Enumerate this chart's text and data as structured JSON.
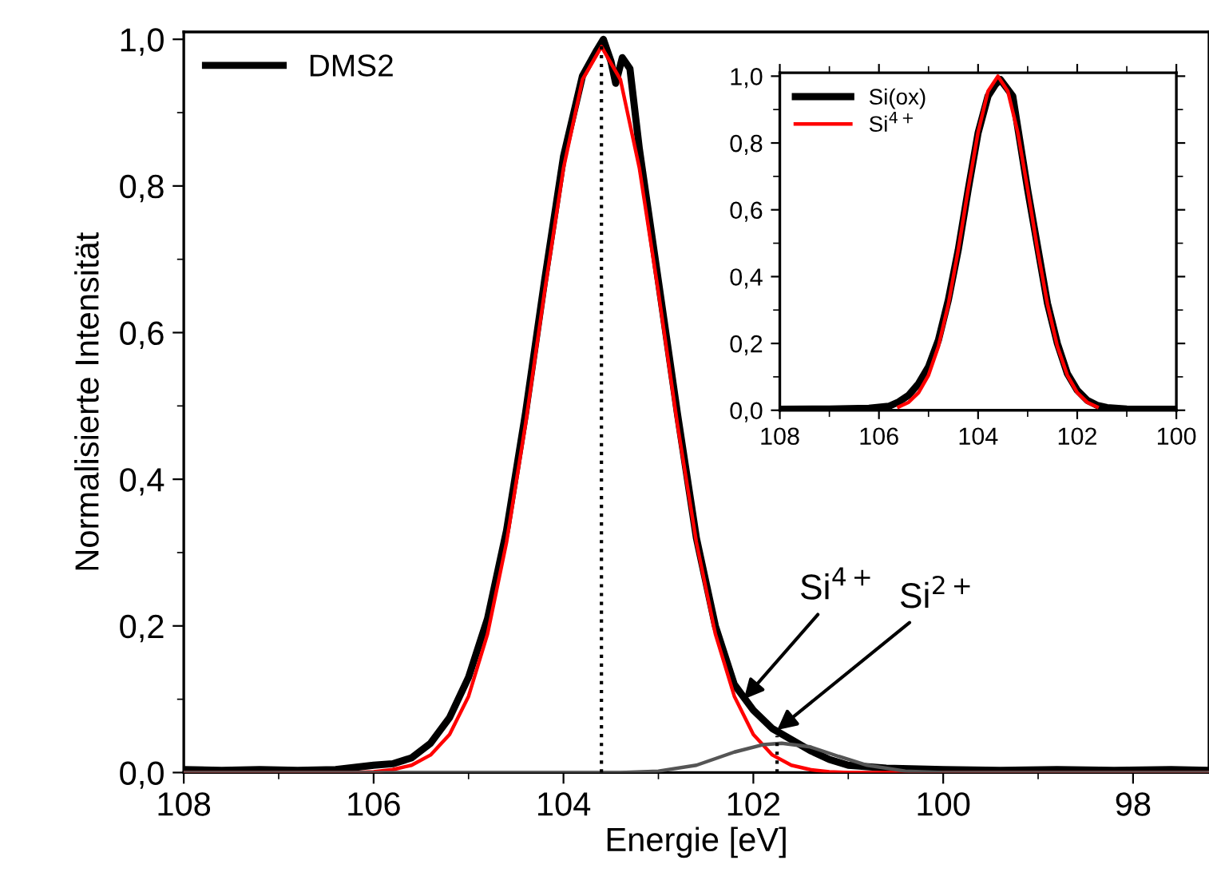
{
  "chart_data": [
    {
      "type": "line",
      "xlabel": "Energie [eV]",
      "ylabel": "Normalisierte Intensität",
      "xlim": [
        108,
        97.2
      ],
      "ylim": [
        0,
        1.01
      ],
      "xticks": [
        108,
        106,
        104,
        102,
        100,
        98
      ],
      "yticks": [
        {
          "value": 0,
          "label": "0,0"
        },
        {
          "value": 0.2,
          "label": "0,2"
        },
        {
          "value": 0.4,
          "label": "0,4"
        },
        {
          "value": 0.6,
          "label": "0,6"
        },
        {
          "value": 0.8,
          "label": "0,8"
        },
        {
          "value": 1.0,
          "label": "1,0"
        }
      ],
      "legend": "top left",
      "grid": false,
      "series": [
        {
          "name": "DMS2",
          "color": "#000000",
          "x": [
            108,
            107.6,
            107.2,
            106.8,
            106.4,
            106.2,
            106.0,
            105.8,
            105.6,
            105.4,
            105.2,
            105.0,
            104.8,
            104.6,
            104.4,
            104.2,
            104.0,
            103.8,
            103.65,
            103.58,
            103.5,
            103.45,
            103.38,
            103.3,
            103.2,
            103.0,
            102.8,
            102.6,
            102.4,
            102.2,
            102.0,
            101.8,
            101.6,
            101.4,
            101.2,
            101.0,
            100.6,
            100.0,
            99.4,
            98.8,
            98.2,
            97.6,
            97.2
          ],
          "values": [
            0.004,
            0.003,
            0.004,
            0.003,
            0.004,
            0.007,
            0.01,
            0.012,
            0.02,
            0.04,
            0.075,
            0.13,
            0.21,
            0.33,
            0.49,
            0.67,
            0.84,
            0.95,
            0.985,
            1.0,
            0.97,
            0.94,
            0.975,
            0.96,
            0.85,
            0.67,
            0.49,
            0.32,
            0.2,
            0.12,
            0.085,
            0.06,
            0.045,
            0.03,
            0.018,
            0.01,
            0.006,
            0.004,
            0.003,
            0.004,
            0.003,
            0.004,
            0.003
          ]
        },
        {
          "color": "#ff0000",
          "x": [
            108,
            106.2,
            106.0,
            105.8,
            105.6,
            105.4,
            105.2,
            105.0,
            104.8,
            104.6,
            104.4,
            104.2,
            104.0,
            103.8,
            103.6,
            103.4,
            103.2,
            103.0,
            102.8,
            102.6,
            102.4,
            102.2,
            102.0,
            101.8,
            101.6,
            101.4,
            101.2,
            101.0,
            97.2
          ],
          "values": [
            0,
            0,
            0.001,
            0.004,
            0.01,
            0.024,
            0.052,
            0.104,
            0.189,
            0.314,
            0.475,
            0.655,
            0.824,
            0.945,
            0.99,
            0.945,
            0.824,
            0.655,
            0.475,
            0.314,
            0.189,
            0.104,
            0.052,
            0.024,
            0.01,
            0.004,
            0.001,
            0,
            0
          ]
        },
        {
          "color": "#555555",
          "x": [
            108,
            103.4,
            103.0,
            102.6,
            102.2,
            101.9,
            101.7,
            101.4,
            101.1,
            100.8,
            100.4,
            100.0,
            97.2
          ],
          "values": [
            0,
            0,
            0.002,
            0.01,
            0.028,
            0.038,
            0.04,
            0.035,
            0.022,
            0.01,
            0.002,
            0,
            0
          ]
        },
        {
          "color": "#000000",
          "line_style": "dotted",
          "x": [
            103.6,
            103.6
          ],
          "values": [
            0,
            0.995
          ]
        },
        {
          "color": "#000000",
          "line_style": "dotted",
          "x": [
            101.75,
            101.75
          ],
          "values": [
            0,
            0.05
          ]
        }
      ],
      "annotations": [
        {
          "text": "Si$^{4+}$",
          "x": 102.1,
          "y": 0.1
        },
        {
          "text": "Si$^{2+}$",
          "x": 101.75,
          "y": 0.058
        }
      ]
    },
    {
      "type": "line",
      "xlim": [
        108,
        100
      ],
      "ylim": [
        0,
        1.01
      ],
      "xticks": [
        108,
        106,
        104,
        102,
        100
      ],
      "yticks": [
        {
          "value": 0,
          "label": "0,0"
        },
        {
          "value": 0.2,
          "label": "0,2"
        },
        {
          "value": 0.4,
          "label": "0,4"
        },
        {
          "value": 0.6,
          "label": "0,6"
        },
        {
          "value": 0.8,
          "label": "0,8"
        },
        {
          "value": 1.0,
          "label": "1,0"
        }
      ],
      "legend": "top left",
      "grid": false,
      "series": [
        {
          "name": "Si(ox)",
          "color": "#000000",
          "x": [
            108,
            107.0,
            106.2,
            105.8,
            105.6,
            105.4,
            105.2,
            105.0,
            104.8,
            104.6,
            104.4,
            104.2,
            104.0,
            103.8,
            103.65,
            103.55,
            103.45,
            103.3,
            103.0,
            102.8,
            102.6,
            102.4,
            102.2,
            102.0,
            101.8,
            101.6,
            101.4,
            101.0,
            100.0
          ],
          "values": [
            0.003,
            0.004,
            0.006,
            0.012,
            0.025,
            0.045,
            0.08,
            0.13,
            0.21,
            0.33,
            0.48,
            0.66,
            0.83,
            0.94,
            0.975,
            0.99,
            0.97,
            0.94,
            0.66,
            0.49,
            0.32,
            0.2,
            0.11,
            0.06,
            0.03,
            0.015,
            0.008,
            0.004,
            0.003
          ]
        },
        {
          "name": "Si$^{4+}$",
          "color": "#ff0000",
          "x": [
            105.6,
            105.4,
            105.2,
            105.0,
            104.8,
            104.6,
            104.4,
            104.2,
            104.0,
            103.8,
            103.6,
            103.4,
            103.2,
            103.0,
            102.8,
            102.6,
            102.4,
            102.2,
            102.0,
            101.8,
            101.6
          ],
          "values": [
            0.01,
            0.024,
            0.053,
            0.105,
            0.191,
            0.317,
            0.48,
            0.662,
            0.832,
            0.955,
            1.0,
            0.955,
            0.832,
            0.662,
            0.48,
            0.317,
            0.191,
            0.105,
            0.053,
            0.024,
            0.01
          ]
        }
      ]
    }
  ]
}
